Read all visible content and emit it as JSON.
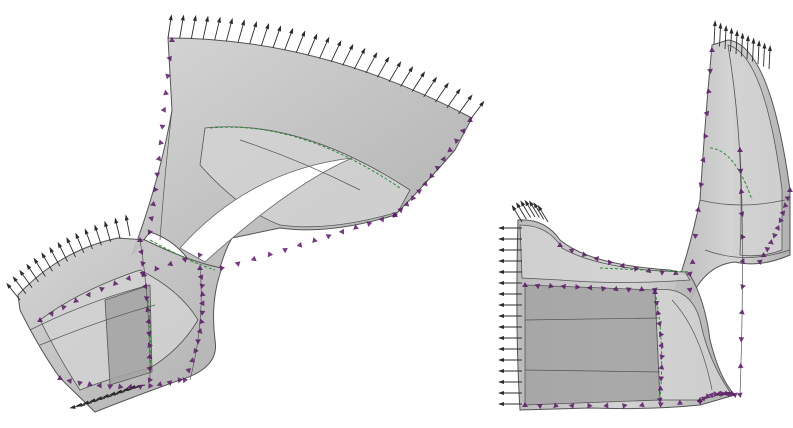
{
  "figure": {
    "panels": [
      {
        "id": "left-model",
        "view": "oblique"
      },
      {
        "id": "right-model",
        "view": "side"
      }
    ],
    "colors": {
      "surface": "#bdbdbd",
      "surface_light": "#d2d2d2",
      "surface_dark": "#a2a2a2",
      "edge": "#555555",
      "load_arrow": "#2b2b2b",
      "constraint_marker": "#5a1a66",
      "seam_line": "#2e8b3a",
      "background": "#ffffff"
    },
    "icons": {
      "load_arrow": "arrow-up-icon",
      "constraint_marker": "triangle-marker-icon"
    }
  }
}
